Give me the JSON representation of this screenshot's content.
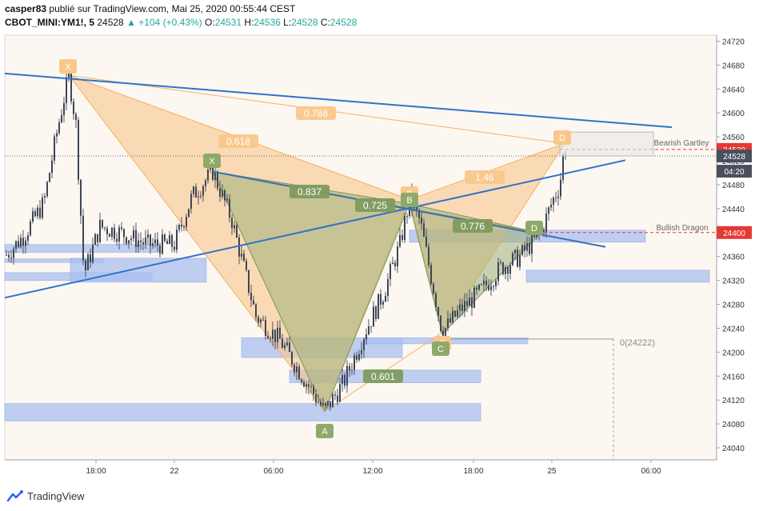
{
  "header": {
    "author": "casper83",
    "published_text": "publié sur TradingView.com, Mai 25, 2020 00:55:44 CEST",
    "symbol": "CBOT_MINI:YM1!, 5",
    "last_price": "24528",
    "change": "▲ +104 (+0.43%)",
    "o_label": "O:",
    "o_value": "24531",
    "h_label": "H:",
    "h_value": "24536",
    "l_label": "L:",
    "l_value": "24528",
    "c_label": "C:",
    "c_value": "24528"
  },
  "footer": {
    "brand": "TradingView"
  },
  "colors": {
    "bg_plot": "#fdf7f1",
    "candle": "#3d4556",
    "pattern_orange": "#f9c78c",
    "pattern_green": "#9cb07a",
    "trendline": "#2f73c9",
    "zone_blue": "#a9bff0",
    "price_red": "#e53935",
    "price_dark": "#4a4f5c"
  },
  "chart_data": {
    "type": "candlestick",
    "y_axis": {
      "min": 24020,
      "max": 24730,
      "ticks": [
        24040,
        24080,
        24120,
        24160,
        24200,
        24240,
        24280,
        24320,
        24360,
        24400,
        24440,
        24480,
        24520,
        24560,
        24600,
        24640,
        24680,
        24720
      ]
    },
    "x_axis": {
      "tick_labels": [
        "18:00",
        "22",
        "06:00",
        "12:00",
        "18:00",
        "25",
        "06:00"
      ]
    },
    "price_labels": [
      {
        "value": "24539",
        "style": "red"
      },
      {
        "value": "24528",
        "style": "dark"
      },
      {
        "value": "04:20",
        "style": "dark"
      },
      {
        "value": "24400",
        "style": "red"
      }
    ],
    "annotations": [
      {
        "text": "Bearish Gartley"
      },
      {
        "text": "Bullish Dragon"
      },
      {
        "text": "0(24222)"
      }
    ],
    "pattern_points": [
      {
        "label": "X",
        "style": "orange"
      },
      {
        "label": "X",
        "style": "green"
      },
      {
        "label": "A",
        "style": "green"
      },
      {
        "label": "B",
        "style": "orange"
      },
      {
        "label": "B",
        "style": "green"
      },
      {
        "label": "C",
        "style": "orange"
      },
      {
        "label": "C",
        "style": "green"
      },
      {
        "label": "D",
        "style": "green"
      },
      {
        "label": "D",
        "style": "orange"
      }
    ],
    "ratios": [
      {
        "text": "0.786",
        "style": "orange"
      },
      {
        "text": "0.618",
        "style": "orange"
      },
      {
        "text": "1.46",
        "style": "orange"
      },
      {
        "text": "0.837",
        "style": "green"
      },
      {
        "text": "0.725",
        "style": "green"
      },
      {
        "text": "0.776",
        "style": "green"
      },
      {
        "text": "0.601",
        "style": "green"
      }
    ]
  }
}
